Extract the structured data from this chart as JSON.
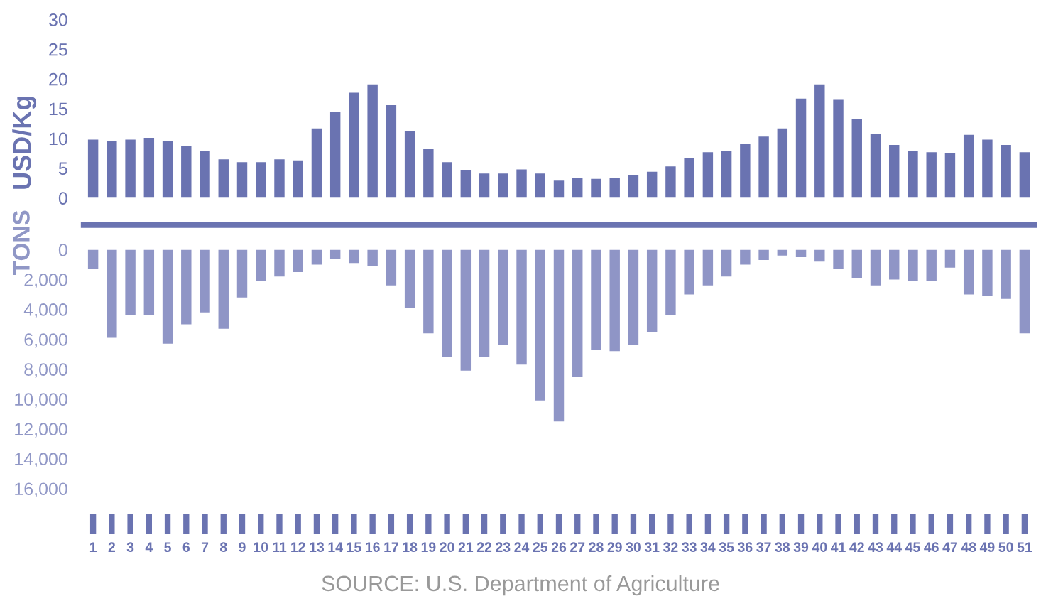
{
  "chart_data": [
    {
      "type": "bar",
      "ylabel": "USD/Kg",
      "categories": [
        "1",
        "2",
        "3",
        "4",
        "5",
        "6",
        "7",
        "8",
        "9",
        "10",
        "11",
        "12",
        "13",
        "14",
        "15",
        "16",
        "17",
        "18",
        "19",
        "20",
        "21",
        "22",
        "23",
        "24",
        "25",
        "26",
        "27",
        "28",
        "29",
        "30",
        "31",
        "32",
        "33",
        "34",
        "35",
        "36",
        "37",
        "38",
        "39",
        "40",
        "41",
        "42",
        "43",
        "44",
        "45",
        "46",
        "47",
        "48",
        "49",
        "50",
        "51"
      ],
      "values": [
        9.8,
        9.6,
        9.8,
        10.1,
        9.6,
        8.7,
        7.9,
        6.5,
        6.0,
        6.0,
        6.5,
        6.3,
        11.7,
        14.4,
        17.7,
        19.1,
        15.6,
        11.3,
        8.2,
        6.0,
        4.6,
        4.1,
        4.1,
        4.8,
        4.1,
        2.9,
        3.4,
        3.2,
        3.4,
        3.9,
        4.4,
        5.3,
        6.7,
        7.7,
        7.9,
        9.1,
        10.3,
        11.7,
        16.7,
        19.1,
        16.5,
        13.2,
        10.8,
        8.9,
        7.9,
        7.7,
        7.5,
        10.6,
        9.8,
        8.9,
        7.7
      ],
      "color": "#6a73b1",
      "ylim": [
        0,
        30
      ],
      "yticks": [
        0,
        5,
        10,
        15,
        20,
        25,
        30
      ],
      "grid": false,
      "tick_labels": "y"
    },
    {
      "type": "bar",
      "ylabel": "TONS",
      "categories": [
        "1",
        "2",
        "3",
        "4",
        "5",
        "6",
        "7",
        "8",
        "9",
        "10",
        "11",
        "12",
        "13",
        "14",
        "15",
        "16",
        "17",
        "18",
        "19",
        "20",
        "21",
        "22",
        "23",
        "24",
        "25",
        "26",
        "27",
        "28",
        "29",
        "30",
        "31",
        "32",
        "33",
        "34",
        "35",
        "36",
        "37",
        "38",
        "39",
        "40",
        "41",
        "42",
        "43",
        "44",
        "45",
        "46",
        "47",
        "48",
        "49",
        "50",
        "51"
      ],
      "values": [
        1300,
        5900,
        4400,
        4400,
        6300,
        5000,
        4200,
        5300,
        3200,
        2100,
        1800,
        1500,
        1000,
        600,
        900,
        1100,
        2400,
        3900,
        5600,
        7200,
        8100,
        7200,
        6400,
        7700,
        10100,
        11500,
        8500,
        6700,
        6800,
        6400,
        5500,
        4400,
        3000,
        2400,
        1800,
        1000,
        700,
        400,
        500,
        800,
        1300,
        1900,
        2400,
        2000,
        2100,
        2100,
        1200,
        3000,
        3100,
        3300,
        5600
      ],
      "color": "#8f95c6",
      "ylim": [
        16000,
        0
      ],
      "yticks": [
        {
          "value": 0,
          "label": "0"
        },
        {
          "value": 2000,
          "label": "2,000"
        },
        {
          "value": 4000,
          "label": "4,000"
        },
        {
          "value": 6000,
          "label": "6,000"
        },
        {
          "value": 8000,
          "label": "8,000"
        },
        {
          "value": 10000,
          "label": "10,000"
        },
        {
          "value": 12000,
          "label": "12,000"
        },
        {
          "value": 14000,
          "label": "14,000"
        },
        {
          "value": 16000,
          "label": "16,000"
        }
      ],
      "grid": false,
      "annotations": [
        "SOURCE: U.S. Department of Agriculture"
      ]
    }
  ]
}
